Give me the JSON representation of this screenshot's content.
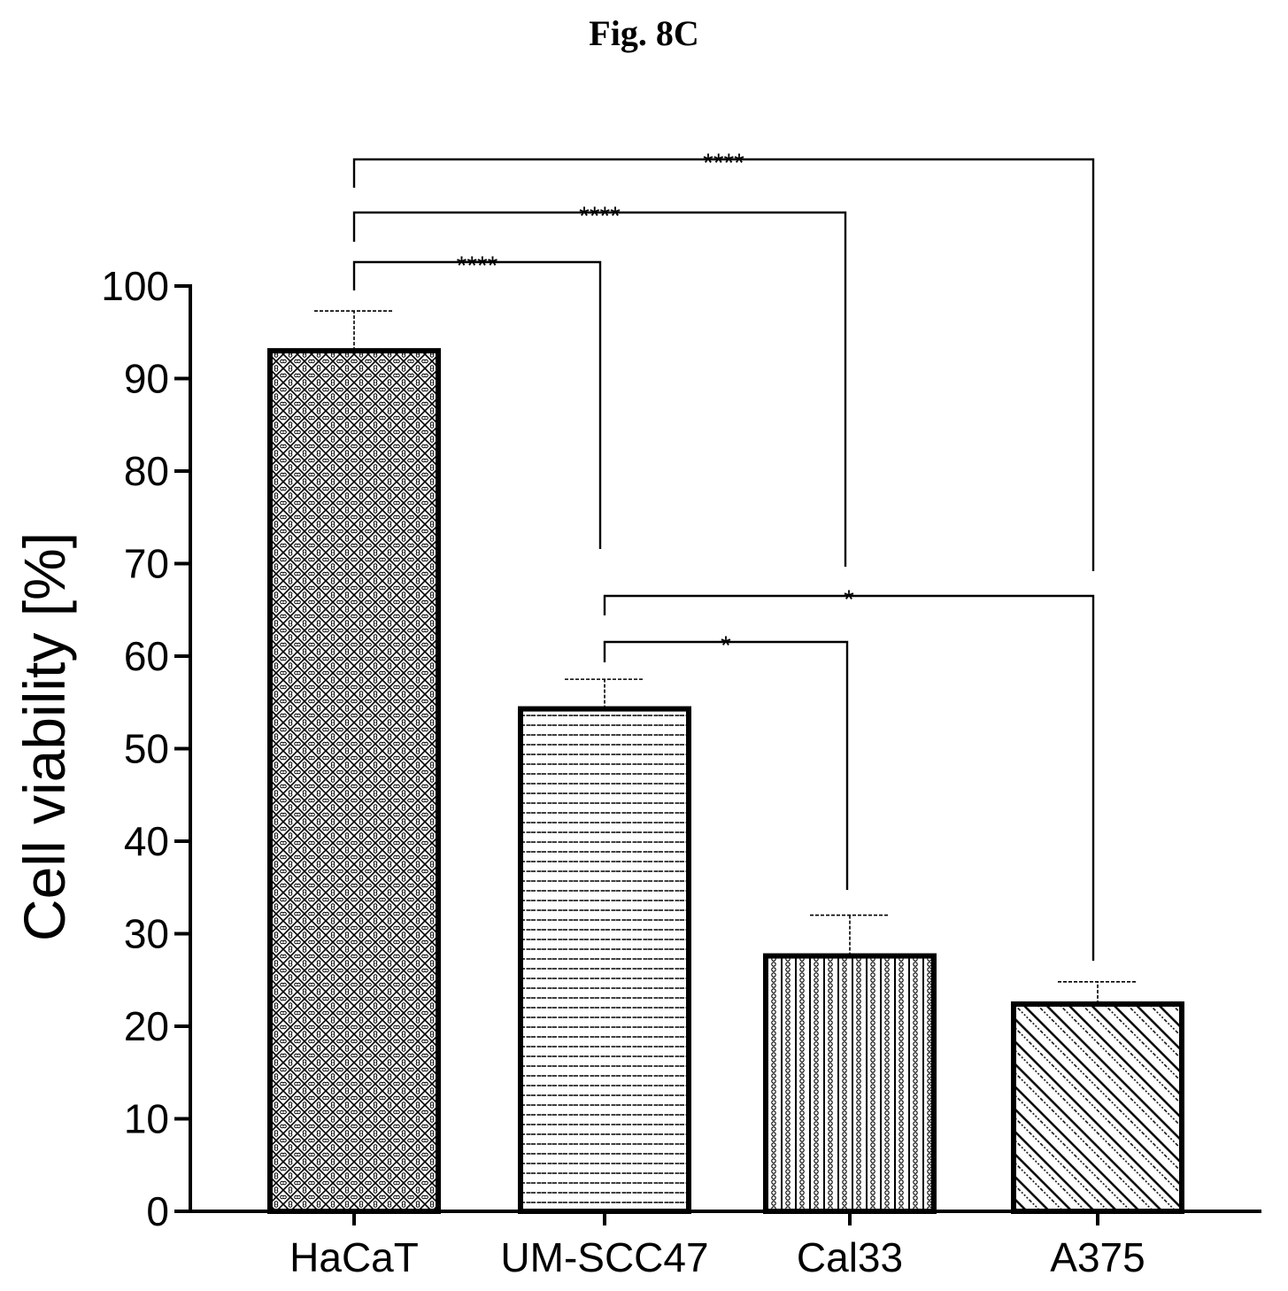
{
  "figure": {
    "title": "Fig. 8C"
  },
  "chart_data": {
    "type": "bar",
    "categories": [
      "HaCaT",
      "UM-SCC47",
      "Cal33",
      "A375"
    ],
    "values": [
      93,
      54.3,
      27.6,
      22.4
    ],
    "error": [
      4.3,
      3.2,
      4.4,
      2.4
    ],
    "ylabel": "Cell viability [%]",
    "xlabel": "",
    "ylim": [
      0,
      100
    ],
    "yticks": [
      "0",
      "10",
      "20",
      "30",
      "40",
      "50",
      "60",
      "70",
      "80",
      "90",
      "100"
    ],
    "patterns": [
      "crosshatch-dots",
      "horizontal-dashed",
      "vertical-dotted",
      "diagonal-dotted"
    ],
    "significance": [
      {
        "from": "HaCaT",
        "to": "A375",
        "label": "****"
      },
      {
        "from": "HaCaT",
        "to": "Cal33",
        "label": "****"
      },
      {
        "from": "HaCaT",
        "to": "UM-SCC47",
        "label": "****"
      },
      {
        "from": "UM-SCC47",
        "to": "A375",
        "label": "*"
      },
      {
        "from": "UM-SCC47",
        "to": "Cal33",
        "label": "*"
      }
    ],
    "colors": {
      "bar_stroke": "#000000",
      "bar_fill": "#ffffff",
      "pattern": "#000000"
    }
  }
}
